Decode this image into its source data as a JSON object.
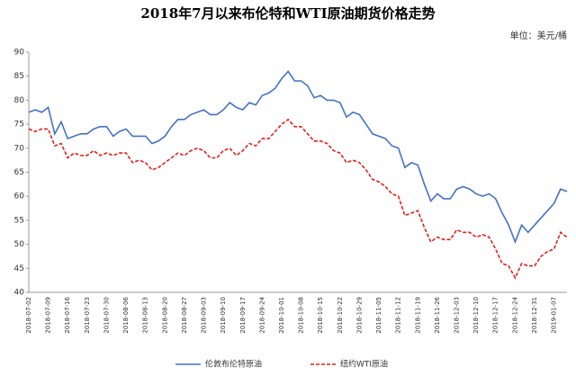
{
  "chart_data": {
    "type": "line",
    "title": "2018年7月以来布伦特和WTI原油期货价格走势",
    "unit_label": "单位：美元/桶",
    "categories": [
      "2018-07-02",
      null,
      null,
      "2018-07-09",
      null,
      null,
      "2018-07-16",
      null,
      null,
      "2018-07-23",
      null,
      null,
      "2018-07-30",
      null,
      null,
      "2018-08-06",
      null,
      null,
      "2018-08-13",
      null,
      null,
      "2018-08-20",
      null,
      null,
      "2018-08-27",
      null,
      null,
      "2018-09-03",
      null,
      null,
      "2018-09-10",
      null,
      null,
      "2018-09-17",
      null,
      null,
      "2018-09-24",
      null,
      null,
      "2018-10-01",
      null,
      null,
      "2018-10-08",
      null,
      null,
      "2018-10-15",
      null,
      null,
      "2018-10-22",
      null,
      null,
      "2018-10-29",
      null,
      null,
      "2018-11-05",
      null,
      null,
      "2018-11-12",
      null,
      null,
      "2018-11-19",
      null,
      null,
      "2018-11-26",
      null,
      null,
      "2018-12-03",
      null,
      null,
      "2018-12-10",
      null,
      null,
      "2018-12-17",
      null,
      null,
      "2018-12-24",
      null,
      null,
      "2018-12-31",
      null,
      null,
      "2019-01-07",
      null,
      null
    ],
    "series": [
      {
        "name": "伦敦布伦特原油",
        "color": "#4472c4",
        "dash": false,
        "values": [
          77.5,
          78,
          77.5,
          78.5,
          73,
          75.5,
          72,
          72.5,
          73,
          73,
          74,
          74.5,
          74.5,
          72.5,
          73.5,
          74,
          72.5,
          72.5,
          72.5,
          71,
          71.5,
          72.5,
          74.5,
          76,
          76,
          77,
          77.5,
          78,
          77,
          77,
          78,
          79.5,
          78.5,
          78,
          79.5,
          79,
          81,
          81.5,
          82.5,
          84.5,
          86,
          84,
          84,
          83,
          80.5,
          81,
          80,
          80,
          79.5,
          76.5,
          77.5,
          77,
          75,
          73,
          72.5,
          72,
          70.5,
          70,
          66,
          67,
          66.5,
          62.5,
          59,
          60.5,
          59.5,
          59.5,
          61.5,
          62,
          61.5,
          60.5,
          60,
          60.5,
          59.5,
          56.5,
          54,
          50.5,
          54,
          52.5,
          54,
          55.5,
          57,
          58.5,
          61.5,
          61
        ]
      },
      {
        "name": "纽约WTI原油",
        "color": "#e0201b",
        "dash": true,
        "values": [
          74,
          73.5,
          74,
          74,
          70.5,
          71,
          68,
          69,
          68.5,
          68.5,
          69.5,
          68.5,
          69,
          68.5,
          69,
          69,
          67,
          67.5,
          67,
          65.5,
          66,
          67,
          68,
          69,
          68.5,
          69.5,
          70,
          69.5,
          68,
          68,
          69.5,
          70,
          68.5,
          69.5,
          71,
          70.5,
          72,
          72,
          73.5,
          75,
          76,
          74.5,
          74.5,
          73,
          71.5,
          71.5,
          71,
          69.5,
          69,
          67,
          67.5,
          67,
          65.5,
          63.5,
          63,
          62,
          60.5,
          60,
          56,
          56.5,
          57,
          53.5,
          50.5,
          51.5,
          51,
          51,
          53,
          52.5,
          52.5,
          51.5,
          52,
          51.5,
          49,
          46,
          45.5,
          43,
          46,
          45.5,
          45.5,
          47.5,
          48.5,
          49,
          52.5,
          51.5
        ]
      }
    ],
    "ylim": [
      40,
      90
    ],
    "yticks": [
      40,
      45,
      50,
      55,
      60,
      65,
      70,
      75,
      80,
      85,
      90
    ],
    "grid": false
  }
}
